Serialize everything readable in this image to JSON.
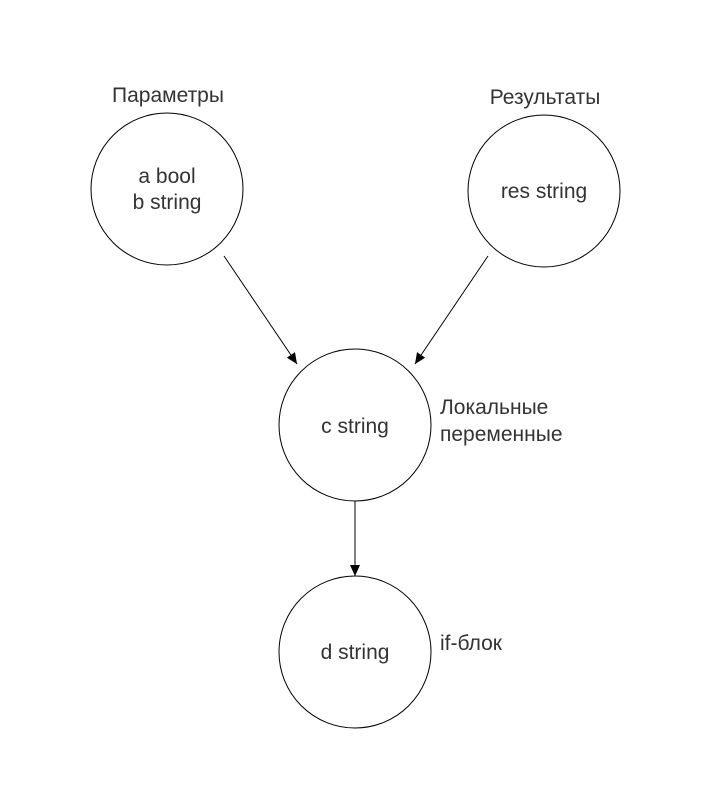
{
  "diagram": {
    "nodes": {
      "params": {
        "caption": "Параметры",
        "lines": [
          "a bool",
          "b string"
        ]
      },
      "results": {
        "caption": "Результаты",
        "lines": [
          "res string"
        ]
      },
      "locals": {
        "caption": [
          "Локальные",
          "переменные"
        ],
        "lines": [
          "c string"
        ]
      },
      "ifblock": {
        "caption": "if-блок",
        "lines": [
          "d string"
        ]
      }
    },
    "edges": [
      {
        "from": "params",
        "to": "locals"
      },
      {
        "from": "results",
        "to": "locals"
      },
      {
        "from": "locals",
        "to": "ifblock"
      }
    ],
    "colors": {
      "stroke": "#000000",
      "text": "#333333",
      "background": "#ffffff"
    }
  }
}
